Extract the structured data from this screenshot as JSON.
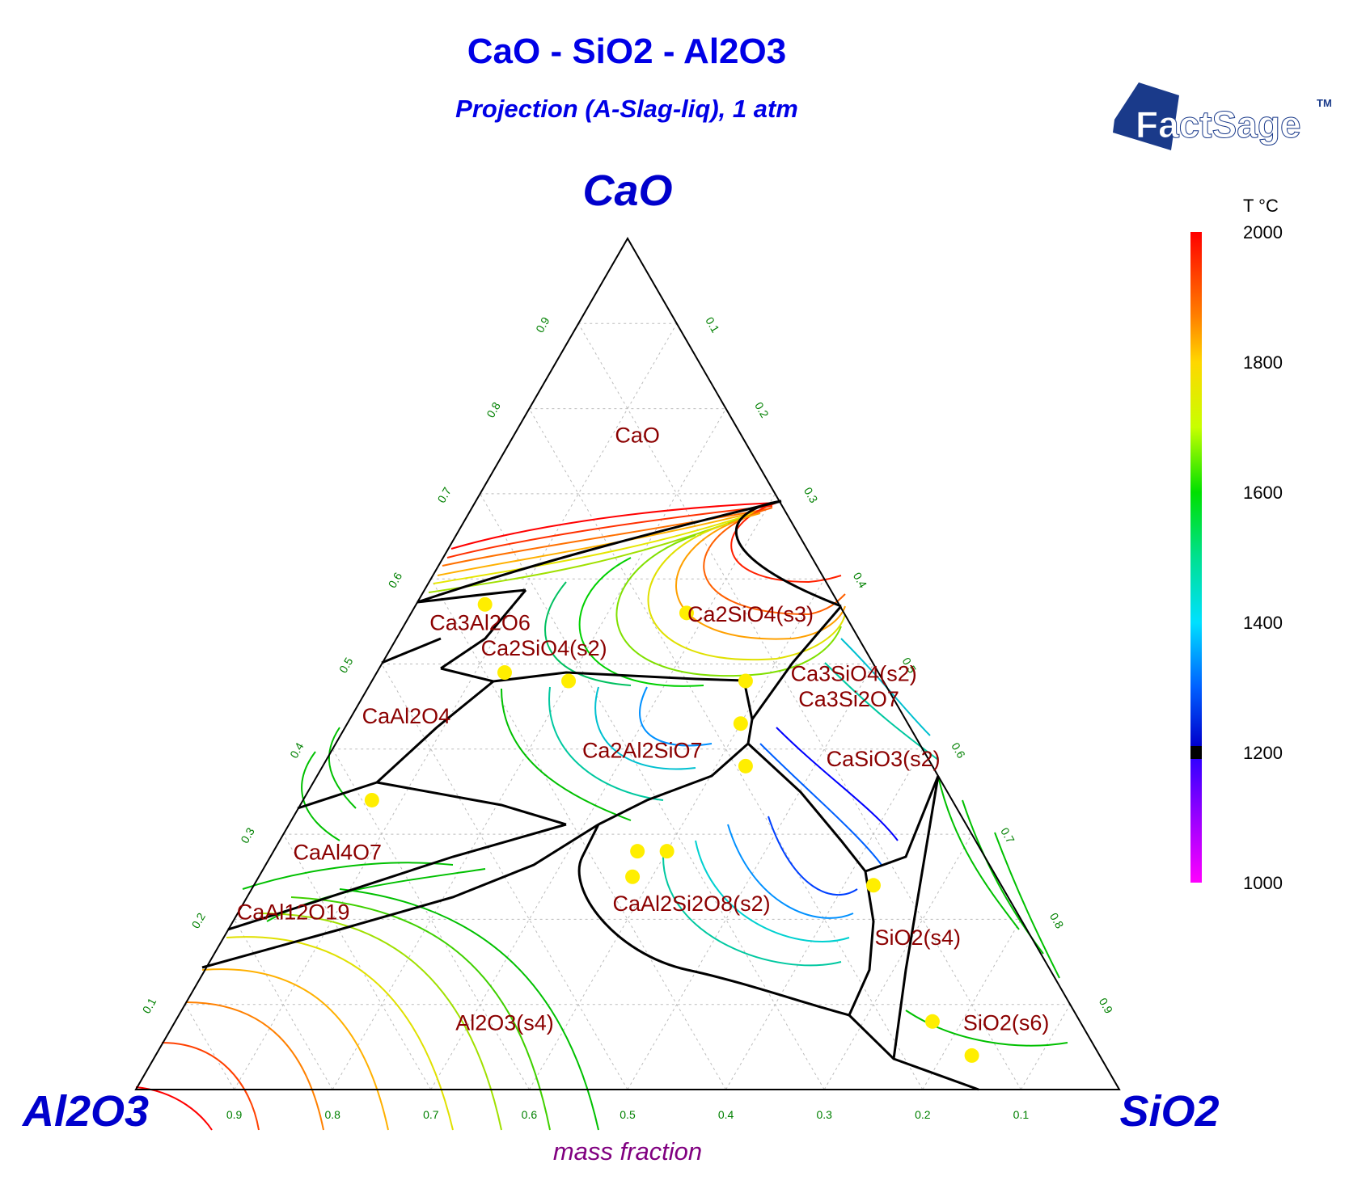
{
  "title": "CaO - SiO2 - Al2O3",
  "subtitle": "Projection (A-Slag-liq), 1 atm",
  "logo": {
    "text": "FactSage",
    "trademark": "TM"
  },
  "axis_label": "mass fraction",
  "colorbar": {
    "title": "T °C",
    "ticks": [
      "2000",
      "1800",
      "1600",
      "1400",
      "1200",
      "1000"
    ]
  },
  "chart_data": {
    "type": "ternary",
    "title": "CaO - SiO2 - Al2O3",
    "subtitle": "Projection (A-Slag-liq), 1 atm",
    "axis_label": "mass fraction",
    "vertices": {
      "top": "CaO",
      "left": "Al2O3",
      "right": "SiO2"
    },
    "tick_values": [
      0.1,
      0.2,
      0.3,
      0.4,
      0.5,
      0.6,
      0.7,
      0.8,
      0.9
    ],
    "tick_labels": [
      "0.1",
      "0.2",
      "0.3",
      "0.4",
      "0.5",
      "0.6",
      "0.7",
      "0.8",
      "0.9"
    ],
    "grid": true,
    "colorbar": {
      "title": "T °C",
      "range": [
        1000,
        2000
      ],
      "ticks": [
        2000,
        1800,
        1600,
        1400,
        1200,
        1000
      ]
    },
    "phase_fields": [
      {
        "label": "CaO",
        "CaO": 0.76,
        "SiO2": 0.13,
        "Al2O3": 0.11
      },
      {
        "label": "Ca2SiO4(s3)",
        "CaO": 0.55,
        "SiO2": 0.35,
        "Al2O3": 0.1
      },
      {
        "label": "Ca3Al2O6",
        "CaO": 0.54,
        "SiO2": 0.08,
        "Al2O3": 0.38
      },
      {
        "label": "Ca2SiO4(s2)",
        "CaO": 0.51,
        "SiO2": 0.16,
        "Al2O3": 0.33
      },
      {
        "label": "Ca3SiO4(s2)",
        "CaO": 0.48,
        "SiO2": 0.49,
        "Al2O3": 0.03
      },
      {
        "label": "Ca3Si2O7",
        "CaO": 0.45,
        "SiO2": 0.5,
        "Al2O3": 0.05
      },
      {
        "label": "CaAl2O4",
        "CaO": 0.43,
        "SiO2": 0.06,
        "Al2O3": 0.51
      },
      {
        "label": "Ca2Al2SiO7",
        "CaO": 0.39,
        "SiO2": 0.32,
        "Al2O3": 0.29
      },
      {
        "label": "CaSiO3(s2)",
        "CaO": 0.38,
        "SiO2": 0.57,
        "Al2O3": 0.05
      },
      {
        "label": "CaAl4O7",
        "CaO": 0.27,
        "SiO2": 0.07,
        "Al2O3": 0.66
      },
      {
        "label": "CaAl12O19",
        "CaO": 0.2,
        "SiO2": 0.06,
        "Al2O3": 0.74
      },
      {
        "label": "CaAl2Si2O8(s2)",
        "CaO": 0.21,
        "SiO2": 0.46,
        "Al2O3": 0.33
      },
      {
        "label": "SiO2(s4)",
        "CaO": 0.17,
        "SiO2": 0.71,
        "Al2O3": 0.12
      },
      {
        "label": "Al2O3(s4)",
        "CaO": 0.07,
        "SiO2": 0.34,
        "Al2O3": 0.59
      },
      {
        "label": "SiO2(s6)",
        "CaO": 0.07,
        "SiO2": 0.85,
        "Al2O3": 0.08
      }
    ],
    "invariant_points": [
      {
        "CaO": 0.56,
        "SiO2": 0.28,
        "Al2O3": 0.16
      },
      {
        "CaO": 0.57,
        "SiO2": 0.07,
        "Al2O3": 0.36
      },
      {
        "CaO": 0.49,
        "SiO2": 0.13,
        "Al2O3": 0.38
      },
      {
        "CaO": 0.48,
        "SiO2": 0.2,
        "Al2O3": 0.32
      },
      {
        "CaO": 0.48,
        "SiO2": 0.38,
        "Al2O3": 0.14
      },
      {
        "CaO": 0.43,
        "SiO2": 0.4,
        "Al2O3": 0.17
      },
      {
        "CaO": 0.38,
        "SiO2": 0.43,
        "Al2O3": 0.19
      },
      {
        "CaO": 0.34,
        "SiO2": 0.07,
        "Al2O3": 0.59
      },
      {
        "CaO": 0.28,
        "SiO2": 0.37,
        "Al2O3": 0.35
      },
      {
        "CaO": 0.28,
        "SiO2": 0.4,
        "Al2O3": 0.32
      },
      {
        "CaO": 0.25,
        "SiO2": 0.38,
        "Al2O3": 0.37
      },
      {
        "CaO": 0.24,
        "SiO2": 0.63,
        "Al2O3": 0.13
      },
      {
        "CaO": 0.08,
        "SiO2": 0.77,
        "Al2O3": 0.15
      },
      {
        "CaO": 0.04,
        "SiO2": 0.83,
        "Al2O3": 0.13
      }
    ]
  }
}
